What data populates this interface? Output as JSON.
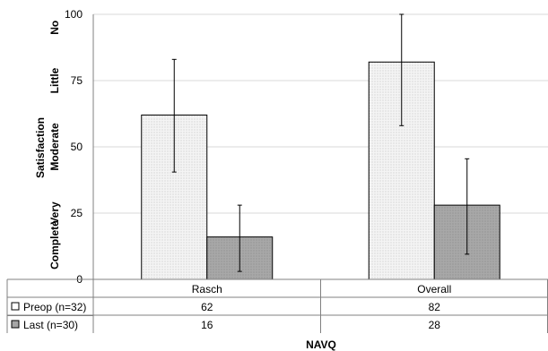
{
  "chart_data": {
    "type": "bar",
    "categories": [
      "Rasch",
      "Overall"
    ],
    "series": [
      {
        "name": "Preop (n=32)",
        "values": [
          62,
          82
        ],
        "error": [
          [
            40.5,
            83
          ],
          [
            58,
            100
          ]
        ],
        "fill": "#eeeeee"
      },
      {
        "name": "Last (n=30)",
        "values": [
          16,
          28
        ],
        "error": [
          [
            3,
            28
          ],
          [
            9.5,
            45.5
          ]
        ],
        "fill": "#a6a6a6"
      }
    ],
    "table_values": [
      [
        "62",
        "82"
      ],
      [
        "16",
        "28"
      ]
    ],
    "ylim": [
      0,
      100
    ],
    "yticks": [
      "0",
      "25",
      "50",
      "75",
      "100"
    ],
    "ylabel": "Satisfaction",
    "ylevels": [
      "Complete",
      "Very",
      "Moderate",
      "Little",
      "No"
    ],
    "xlabel": "NAVQ",
    "grid": true,
    "legend": "data-table"
  }
}
